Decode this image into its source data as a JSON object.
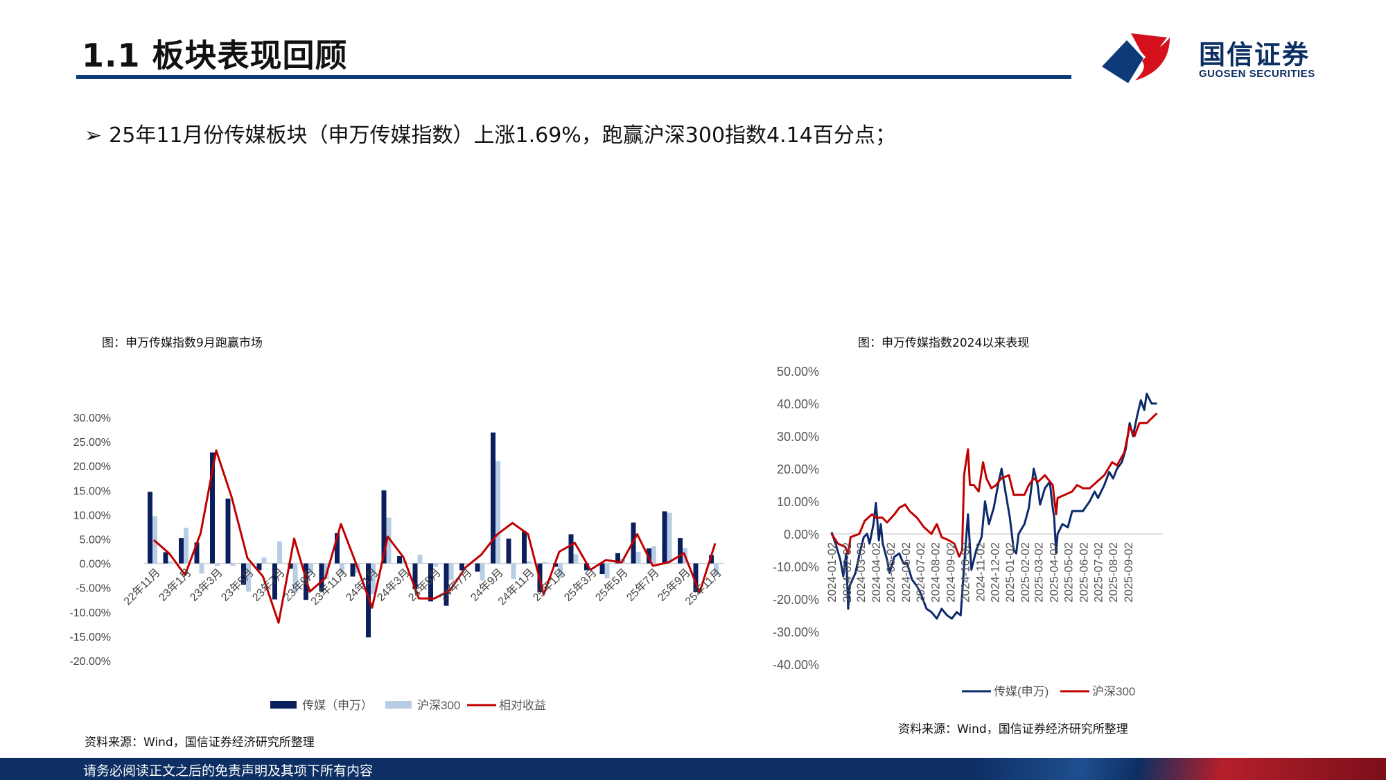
{
  "header": {
    "title": "1.1 板块表现回顾",
    "logo_cn": "国信证券",
    "logo_en": "GUOSEN SECURITIES",
    "accent": "#0d3a78"
  },
  "bullet": "25年11月份传媒板块（申万传媒指数）上涨1.69%，跑赢沪深300指数4.14百分点；",
  "left_chart": {
    "title": "图：申万传媒指数9月跑赢市场",
    "source": "资料来源：Wind，国信证券经济研究所整理"
  },
  "right_chart": {
    "title": "图：申万传媒指数2024以来表现",
    "source": "资料来源：Wind，国信证券经济研究所整理"
  },
  "footer": "请务必阅读正文之后的免责声明及其项下所有内容",
  "chart_data": [
    {
      "type": "bar",
      "title": "图：申万传媒指数9月跑赢市场",
      "categories": [
        "22年11月",
        "22年12月",
        "23年1月",
        "23年2月",
        "23年3月",
        "23年4月",
        "23年5月",
        "23年6月",
        "23年7月",
        "23年8月",
        "23年9月",
        "23年10月",
        "23年11月",
        "23年12月",
        "24年1月",
        "24年2月",
        "24年3月",
        "24年4月",
        "24年5月",
        "24年6月",
        "24年7月",
        "24年8月",
        "24年9月",
        "24年10月",
        "24年11月",
        "24年12月",
        "25年1月",
        "25年2月",
        "25年3月",
        "25年4月",
        "25年5月",
        "25年6月",
        "25年7月",
        "25年8月",
        "25年9月",
        "25年10月",
        "25年11月"
      ],
      "tick_labels": [
        "22年11月",
        "23年1月",
        "23年3月",
        "23年5月",
        "23年7月",
        "23年9月",
        "23年11月",
        "24年1月",
        "24年3月",
        "24年5月",
        "24年7月",
        "24年9月",
        "24年11月",
        "25年1月",
        "25年3月",
        "25年5月",
        "25年7月",
        "25年9月",
        "25年11月"
      ],
      "yticks": [
        "30.00%",
        "25.00%",
        "20.00%",
        "15.00%",
        "10.00%",
        "5.00%",
        "0.00%",
        "-5.00%",
        "-10.00%",
        "-15.00%",
        "-20.00%"
      ],
      "ylim": [
        -20,
        30
      ],
      "series": [
        {
          "name": "传媒（申万）",
          "kind": "bar",
          "color": "#0a1f5c",
          "values": [
            14.7,
            2.3,
            5.2,
            4.3,
            22.8,
            13.3,
            -4.4,
            -1.4,
            -7.4,
            -1.1,
            -7.5,
            -5.8,
            6.2,
            -2.7,
            -15.2,
            15.0,
            1.5,
            -5.3,
            -7.8,
            -8.7,
            -1.4,
            -1.7,
            26.9,
            5.1,
            6.6,
            -5.9,
            -0.7,
            6.0,
            -1.4,
            -2.2,
            2.1,
            8.4,
            3.1,
            10.7,
            5.2,
            -5.9,
            1.69
          ]
        },
        {
          "name": "沪深300",
          "kind": "bar",
          "color": "#b8cce4",
          "values": [
            9.7,
            0.4,
            7.3,
            -2.1,
            -0.5,
            -0.5,
            -5.8,
            1.2,
            4.5,
            -6.0,
            -2.0,
            -3.2,
            -2.1,
            -1.9,
            -6.3,
            9.4,
            0.6,
            1.8,
            -0.7,
            -3.4,
            -0.2,
            -3.5,
            21.0,
            -3.2,
            0.5,
            0.3,
            -3.0,
            1.9,
            0.1,
            -3.1,
            0.9,
            2.4,
            3.5,
            10.4,
            3.2,
            0.1,
            -2.45
          ]
        },
        {
          "name": "相对收益",
          "kind": "line",
          "color": "#c00000",
          "values": [
            4.8,
            2.0,
            -2.4,
            6.2,
            23.2,
            13.5,
            1.1,
            -2.7,
            -12.2,
            5.1,
            -5.8,
            -3.0,
            8.1,
            -0.3,
            -9.1,
            5.5,
            1.3,
            -7.2,
            -7.2,
            -5.5,
            -0.8,
            1.8,
            5.9,
            8.3,
            6.0,
            -6.4,
            2.4,
            4.2,
            -1.3,
            0.7,
            0.2,
            6.0,
            -0.5,
            0.2,
            2.1,
            -6.0,
            4.14
          ]
        }
      ],
      "legend": "bottom"
    },
    {
      "type": "line",
      "title": "图：申万传媒指数2024以来表现",
      "xticks": [
        "2024-01-02",
        "2024-02-02",
        "2024-03-02",
        "2024-04-02",
        "2024-05-02",
        "2024-06-02",
        "2024-07-02",
        "2024-08-02",
        "2024-09-02",
        "2024-10-02",
        "2024-11-02",
        "2024-12-02",
        "2025-01-02",
        "2025-02-02",
        "2025-03-02",
        "2025-04-02",
        "2025-05-02",
        "2025-06-02",
        "2025-07-02",
        "2025-08-02",
        "2025-09-02"
      ],
      "yticks": [
        "50.00%",
        "40.00%",
        "30.00%",
        "20.00%",
        "10.00%",
        "0.00%",
        "-10.00%",
        "-20.00%",
        "-30.00%",
        "-40.00%"
      ],
      "ylim": [
        -40,
        50
      ],
      "legend": "bottom",
      "series": [
        {
          "name": "传媒(申万)",
          "color": "#0d2a6b",
          "points": [
            [
              "2024-01-02",
              0.5
            ],
            [
              "2024-01-10",
              -3
            ],
            [
              "2024-01-20",
              -8
            ],
            [
              "2024-01-26",
              -13
            ],
            [
              "2024-02-01",
              -6
            ],
            [
              "2024-02-05",
              -23
            ],
            [
              "2024-02-08",
              -16
            ],
            [
              "2024-02-20",
              -12
            ],
            [
              "2024-03-01",
              -5
            ],
            [
              "2024-03-08",
              -1
            ],
            [
              "2024-03-15",
              0
            ],
            [
              "2024-03-20",
              -3
            ],
            [
              "2024-03-28",
              3
            ],
            [
              "2024-04-02",
              9.5
            ],
            [
              "2024-04-08",
              -2
            ],
            [
              "2024-04-12",
              3
            ],
            [
              "2024-04-16",
              -3
            ],
            [
              "2024-04-25",
              -8
            ],
            [
              "2024-04-30",
              -12
            ],
            [
              "2024-05-10",
              -7
            ],
            [
              "2024-05-20",
              -6
            ],
            [
              "2024-05-28",
              -9
            ],
            [
              "2024-06-05",
              -9
            ],
            [
              "2024-06-15",
              -14
            ],
            [
              "2024-06-25",
              -16
            ],
            [
              "2024-07-02",
              -18
            ],
            [
              "2024-07-15",
              -23
            ],
            [
              "2024-07-25",
              -24
            ],
            [
              "2024-08-05",
              -26
            ],
            [
              "2024-08-15",
              -23
            ],
            [
              "2024-08-26",
              -25
            ],
            [
              "2024-09-05",
              -26
            ],
            [
              "2024-09-15",
              -24
            ],
            [
              "2024-09-23",
              -25
            ],
            [
              "2024-09-30",
              -10
            ],
            [
              "2024-10-08",
              6
            ],
            [
              "2024-10-15",
              -11
            ],
            [
              "2024-10-25",
              -5
            ],
            [
              "2024-11-05",
              -1
            ],
            [
              "2024-11-12",
              10
            ],
            [
              "2024-11-20",
              3
            ],
            [
              "2024-11-30",
              8
            ],
            [
              "2024-12-10",
              16
            ],
            [
              "2024-12-16",
              20
            ],
            [
              "2024-12-25",
              12
            ],
            [
              "2025-01-02",
              5
            ],
            [
              "2025-01-10",
              -5
            ],
            [
              "2025-01-15",
              -6
            ],
            [
              "2025-01-20",
              0
            ],
            [
              "2025-02-01",
              3
            ],
            [
              "2025-02-10",
              8
            ],
            [
              "2025-02-20",
              20
            ],
            [
              "2025-02-28",
              15
            ],
            [
              "2025-03-05",
              9
            ],
            [
              "2025-03-15",
              14
            ],
            [
              "2025-03-25",
              16
            ],
            [
              "2025-03-31",
              8
            ],
            [
              "2025-04-03",
              5
            ],
            [
              "2025-04-07",
              -6
            ],
            [
              "2025-04-10",
              0
            ],
            [
              "2025-04-20",
              3
            ],
            [
              "2025-05-01",
              2
            ],
            [
              "2025-05-10",
              7
            ],
            [
              "2025-05-20",
              7
            ],
            [
              "2025-06-01",
              7
            ],
            [
              "2025-06-15",
              10
            ],
            [
              "2025-06-25",
              13
            ],
            [
              "2025-07-02",
              11
            ],
            [
              "2025-07-15",
              15
            ],
            [
              "2025-07-25",
              19
            ],
            [
              "2025-08-02",
              17
            ],
            [
              "2025-08-10",
              20
            ],
            [
              "2025-08-20",
              22
            ],
            [
              "2025-08-28",
              26
            ],
            [
              "2025-09-05",
              34
            ],
            [
              "2025-09-12",
              30
            ],
            [
              "2025-09-20",
              36
            ],
            [
              "2025-09-28",
              41
            ],
            [
              "2025-10-05",
              38
            ],
            [
              "2025-10-10",
              43
            ],
            [
              "2025-10-20",
              40
            ],
            [
              "2025-10-31",
              40
            ]
          ]
        },
        {
          "name": "沪深300",
          "color": "#c00000",
          "points": [
            [
              "2024-01-02",
              0
            ],
            [
              "2024-01-15",
              -3
            ],
            [
              "2024-01-30",
              -4
            ],
            [
              "2024-02-05",
              -6
            ],
            [
              "2024-02-10",
              -1
            ],
            [
              "2024-02-28",
              0
            ],
            [
              "2024-03-10",
              4
            ],
            [
              "2024-03-25",
              6
            ],
            [
              "2024-04-02",
              5
            ],
            [
              "2024-04-15",
              5
            ],
            [
              "2024-04-25",
              3.5
            ],
            [
              "2024-05-10",
              6
            ],
            [
              "2024-05-20",
              8
            ],
            [
              "2024-06-01",
              9
            ],
            [
              "2024-06-10",
              7
            ],
            [
              "2024-06-25",
              5
            ],
            [
              "2024-07-10",
              2
            ],
            [
              "2024-07-25",
              0
            ],
            [
              "2024-08-05",
              3
            ],
            [
              "2024-08-15",
              -1
            ],
            [
              "2024-08-30",
              -2
            ],
            [
              "2024-09-10",
              -3
            ],
            [
              "2024-09-20",
              -7
            ],
            [
              "2024-09-26",
              -5
            ],
            [
              "2024-09-30",
              18
            ],
            [
              "2024-10-08",
              26
            ],
            [
              "2024-10-12",
              15
            ],
            [
              "2024-10-20",
              15
            ],
            [
              "2024-10-30",
              13
            ],
            [
              "2024-11-08",
              22
            ],
            [
              "2024-11-15",
              17
            ],
            [
              "2024-11-25",
              14
            ],
            [
              "2024-12-05",
              15
            ],
            [
              "2024-12-15",
              17
            ],
            [
              "2024-12-31",
              18
            ],
            [
              "2025-01-10",
              12
            ],
            [
              "2025-01-20",
              12
            ],
            [
              "2025-02-01",
              12
            ],
            [
              "2025-02-10",
              15
            ],
            [
              "2025-02-20",
              17
            ],
            [
              "2025-03-01",
              16
            ],
            [
              "2025-03-15",
              18
            ],
            [
              "2025-03-31",
              15
            ],
            [
              "2025-04-07",
              6
            ],
            [
              "2025-04-10",
              11
            ],
            [
              "2025-04-25",
              12
            ],
            [
              "2025-05-10",
              13
            ],
            [
              "2025-05-20",
              15
            ],
            [
              "2025-06-01",
              14
            ],
            [
              "2025-06-15",
              14
            ],
            [
              "2025-06-30",
              16
            ],
            [
              "2025-07-15",
              18
            ],
            [
              "2025-07-31",
              22
            ],
            [
              "2025-08-10",
              21
            ],
            [
              "2025-08-25",
              25
            ],
            [
              "2025-09-05",
              33
            ],
            [
              "2025-09-15",
              30
            ],
            [
              "2025-09-25",
              34
            ],
            [
              "2025-10-10",
              34
            ],
            [
              "2025-10-31",
              37
            ]
          ]
        }
      ]
    }
  ]
}
